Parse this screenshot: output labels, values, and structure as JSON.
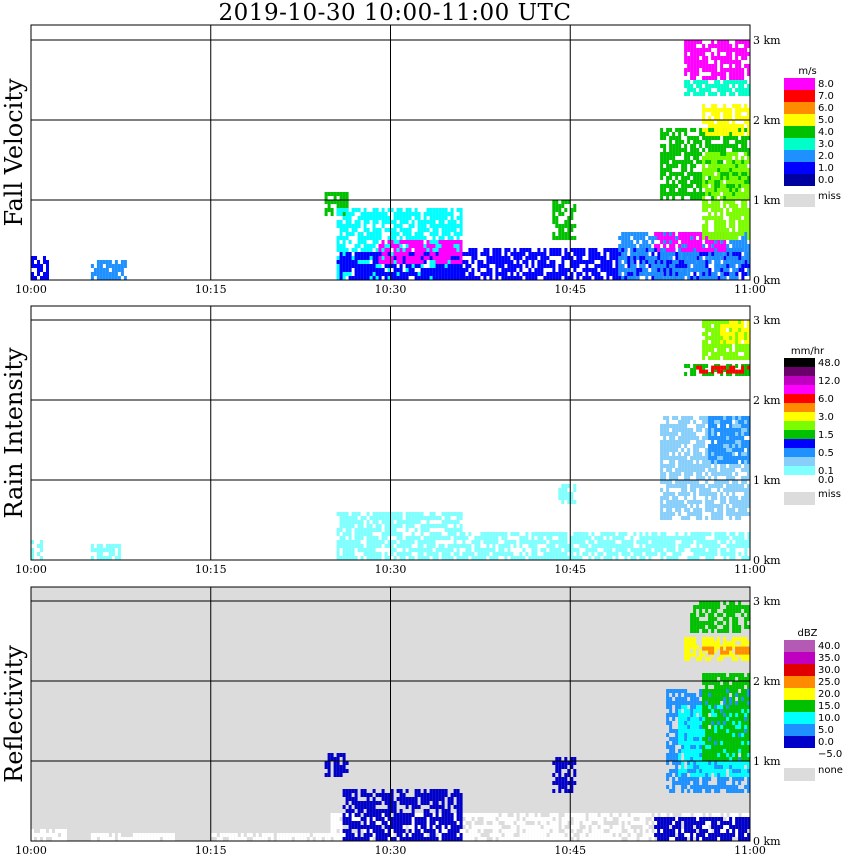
{
  "title": "2019-10-30   10:00-11:00 UTC",
  "chart_data": [
    {
      "type": "heatmap",
      "ylabel": "Fall Velocity",
      "x_ticks": [
        "10:00",
        "10:15",
        "10:30",
        "10:45",
        "11:00"
      ],
      "y_ticks": [
        "0 km",
        "1 km",
        "2 km",
        "3 km"
      ],
      "legend": {
        "unit": "m/s",
        "entries": [
          {
            "label": "8.0",
            "color": "#ff00ff"
          },
          {
            "label": "7.0",
            "color": "#ff0000"
          },
          {
            "label": "6.0",
            "color": "#ff8c00"
          },
          {
            "label": "5.0",
            "color": "#ffff00"
          },
          {
            "label": "4.0",
            "color": "#00c000"
          },
          {
            "label": "3.0",
            "color": "#00ffc8"
          },
          {
            "label": "2.0",
            "color": "#1e90ff"
          },
          {
            "label": "1.0",
            "color": "#0000ff"
          },
          {
            "label": "0.0",
            "color": "#0000a0"
          }
        ],
        "missing": {
          "label": "miss",
          "color": "#dcdcdc"
        }
      },
      "background": "#ffffff",
      "regions": [
        {
          "x0": 0.0,
          "x1": 1.3,
          "z0": 0.0,
          "z1": 0.3,
          "color": "#0000ff"
        },
        {
          "x0": 5.0,
          "x1": 7.8,
          "z0": 0.0,
          "z1": 0.25,
          "color": "#1e90ff"
        },
        {
          "x0": 24.5,
          "x1": 26.5,
          "z0": 0.8,
          "z1": 1.1,
          "color": "#00c000"
        },
        {
          "x0": 25.5,
          "x1": 36,
          "z0": 0.0,
          "z1": 0.9,
          "color": "#00ffff"
        },
        {
          "x0": 25.5,
          "x1": 36,
          "z0": 0.0,
          "z1": 0.35,
          "color": "#0000ff"
        },
        {
          "x0": 29,
          "x1": 36,
          "z0": 0.2,
          "z1": 0.5,
          "color": "#ff00ff"
        },
        {
          "x0": 36,
          "x1": 60,
          "z0": 0.0,
          "z1": 0.4,
          "color": "#0000ff"
        },
        {
          "x0": 43.5,
          "x1": 45.5,
          "z0": 0.5,
          "z1": 1.0,
          "color": "#00c000"
        },
        {
          "x0": 49,
          "x1": 60,
          "z0": 0.0,
          "z1": 0.6,
          "color": "#1e90ff"
        },
        {
          "x0": 52,
          "x1": 58,
          "z0": 0.35,
          "z1": 0.6,
          "color": "#ff00ff"
        },
        {
          "x0": 52.5,
          "x1": 60,
          "z0": 1.0,
          "z1": 1.9,
          "color": "#00c000"
        },
        {
          "x0": 56,
          "x1": 60,
          "z0": 0.5,
          "z1": 1.6,
          "color": "#7cfc00"
        },
        {
          "x0": 54.5,
          "x1": 60,
          "z0": 2.3,
          "z1": 2.5,
          "color": "#00ffc8"
        },
        {
          "x0": 54.5,
          "x1": 60,
          "z0": 2.5,
          "z1": 3.0,
          "color": "#ff00ff"
        },
        {
          "x0": 56,
          "x1": 60,
          "z0": 1.8,
          "z1": 2.2,
          "color": "#ffff00"
        }
      ]
    },
    {
      "type": "heatmap",
      "ylabel": "Rain Intensity",
      "x_ticks": [
        "10:00",
        "10:15",
        "10:30",
        "10:45",
        "11:00"
      ],
      "y_ticks": [
        "0 km",
        "1 km",
        "2 km",
        "3 km"
      ],
      "legend": {
        "unit": "mm/hr",
        "entries": [
          {
            "label": "48.0",
            "color": "#000000"
          },
          {
            "label": "",
            "color": "#6b006b"
          },
          {
            "label": "12.0",
            "color": "#c000c0"
          },
          {
            "label": "",
            "color": "#ff00ff"
          },
          {
            "label": "6.0",
            "color": "#ff0000"
          },
          {
            "label": "",
            "color": "#ff8c00"
          },
          {
            "label": "3.0",
            "color": "#ffff00"
          },
          {
            "label": "",
            "color": "#7cfc00"
          },
          {
            "label": "1.5",
            "color": "#00c000"
          },
          {
            "label": "",
            "color": "#0000ff"
          },
          {
            "label": "0.5",
            "color": "#1e90ff"
          },
          {
            "label": "",
            "color": "#87cefa"
          },
          {
            "label": "0.1",
            "color": "#80ffff"
          },
          {
            "label": "0.0",
            "color": "#ffffff"
          }
        ],
        "missing": {
          "label": "miss",
          "color": "#dcdcdc"
        }
      },
      "background": "#ffffff",
      "regions": [
        {
          "x0": 0.0,
          "x1": 1.0,
          "z0": 0.0,
          "z1": 0.25,
          "color": "#80ffff"
        },
        {
          "x0": 5.0,
          "x1": 7.5,
          "z0": 0.0,
          "z1": 0.2,
          "color": "#80ffff"
        },
        {
          "x0": 25.5,
          "x1": 36,
          "z0": 0.0,
          "z1": 0.6,
          "color": "#80ffff"
        },
        {
          "x0": 36,
          "x1": 60,
          "z0": 0.0,
          "z1": 0.35,
          "color": "#80ffff"
        },
        {
          "x0": 44,
          "x1": 45.5,
          "z0": 0.7,
          "z1": 0.95,
          "color": "#80ffff"
        },
        {
          "x0": 52.5,
          "x1": 60,
          "z0": 0.5,
          "z1": 1.8,
          "color": "#87cefa"
        },
        {
          "x0": 56.5,
          "x1": 60,
          "z0": 1.2,
          "z1": 1.8,
          "color": "#1e90ff"
        },
        {
          "x0": 54.5,
          "x1": 60,
          "z0": 2.3,
          "z1": 2.45,
          "color": "#00c000"
        },
        {
          "x0": 55.5,
          "x1": 60,
          "z0": 2.33,
          "z1": 2.43,
          "color": "#ff0000"
        },
        {
          "x0": 56,
          "x1": 60,
          "z0": 2.5,
          "z1": 3.0,
          "color": "#7cfc00"
        },
        {
          "x0": 57.5,
          "x1": 60,
          "z0": 2.7,
          "z1": 3.0,
          "color": "#ffff00"
        }
      ]
    },
    {
      "type": "heatmap",
      "ylabel": "Reflectivity",
      "x_ticks": [
        "10:00",
        "10:15",
        "10:30",
        "10:45",
        "11:00"
      ],
      "y_ticks": [
        "0 km",
        "1 km",
        "2 km",
        "3 km"
      ],
      "legend": {
        "unit": "dBZ",
        "entries": [
          {
            "label": "40.0",
            "color": "#b45ab4"
          },
          {
            "label": "35.0",
            "color": "#c000c0"
          },
          {
            "label": "30.0",
            "color": "#e00000"
          },
          {
            "label": "25.0",
            "color": "#ff8c00"
          },
          {
            "label": "20.0",
            "color": "#ffff00"
          },
          {
            "label": "15.0",
            "color": "#00c000"
          },
          {
            "label": "10.0",
            "color": "#00ffff"
          },
          {
            "label": "5.0",
            "color": "#1e90ff"
          },
          {
            "label": "0.0",
            "color": "#0000c8"
          },
          {
            "label": "−5.0",
            "color": "#ffffff"
          }
        ],
        "missing": {
          "label": "none",
          "color": "#dcdcdc"
        }
      },
      "background": "#dcdcdc",
      "regions": [
        {
          "x0": 0.0,
          "x1": 3.0,
          "z0": 0.0,
          "z1": 0.15,
          "color": "#ffffff"
        },
        {
          "x0": 5.0,
          "x1": 12,
          "z0": 0.0,
          "z1": 0.1,
          "color": "#ffffff"
        },
        {
          "x0": 15,
          "x1": 26,
          "z0": 0.0,
          "z1": 0.1,
          "color": "#ffffff"
        },
        {
          "x0": 25,
          "x1": 60,
          "z0": 0.0,
          "z1": 0.35,
          "color": "#ffffff"
        },
        {
          "x0": 24.5,
          "x1": 26.5,
          "z0": 0.8,
          "z1": 1.1,
          "color": "#0000c8"
        },
        {
          "x0": 26,
          "x1": 36,
          "z0": 0.0,
          "z1": 0.65,
          "color": "#0000c8"
        },
        {
          "x0": 43.5,
          "x1": 45.5,
          "z0": 0.6,
          "z1": 1.05,
          "color": "#0000c8"
        },
        {
          "x0": 52,
          "x1": 60,
          "z0": 0.0,
          "z1": 0.3,
          "color": "#0000c8"
        },
        {
          "x0": 53,
          "x1": 60,
          "z0": 0.6,
          "z1": 1.9,
          "color": "#1e90ff"
        },
        {
          "x0": 54,
          "x1": 60,
          "z0": 0.8,
          "z1": 1.7,
          "color": "#00ffff"
        },
        {
          "x0": 56,
          "x1": 60,
          "z0": 1.0,
          "z1": 2.1,
          "color": "#00c000"
        },
        {
          "x0": 54.5,
          "x1": 60,
          "z0": 2.25,
          "z1": 2.55,
          "color": "#ffff00"
        },
        {
          "x0": 56,
          "x1": 60,
          "z0": 2.33,
          "z1": 2.43,
          "color": "#ff8c00"
        },
        {
          "x0": 55,
          "x1": 60,
          "z0": 2.6,
          "z1": 3.0,
          "color": "#00c000"
        }
      ]
    }
  ]
}
